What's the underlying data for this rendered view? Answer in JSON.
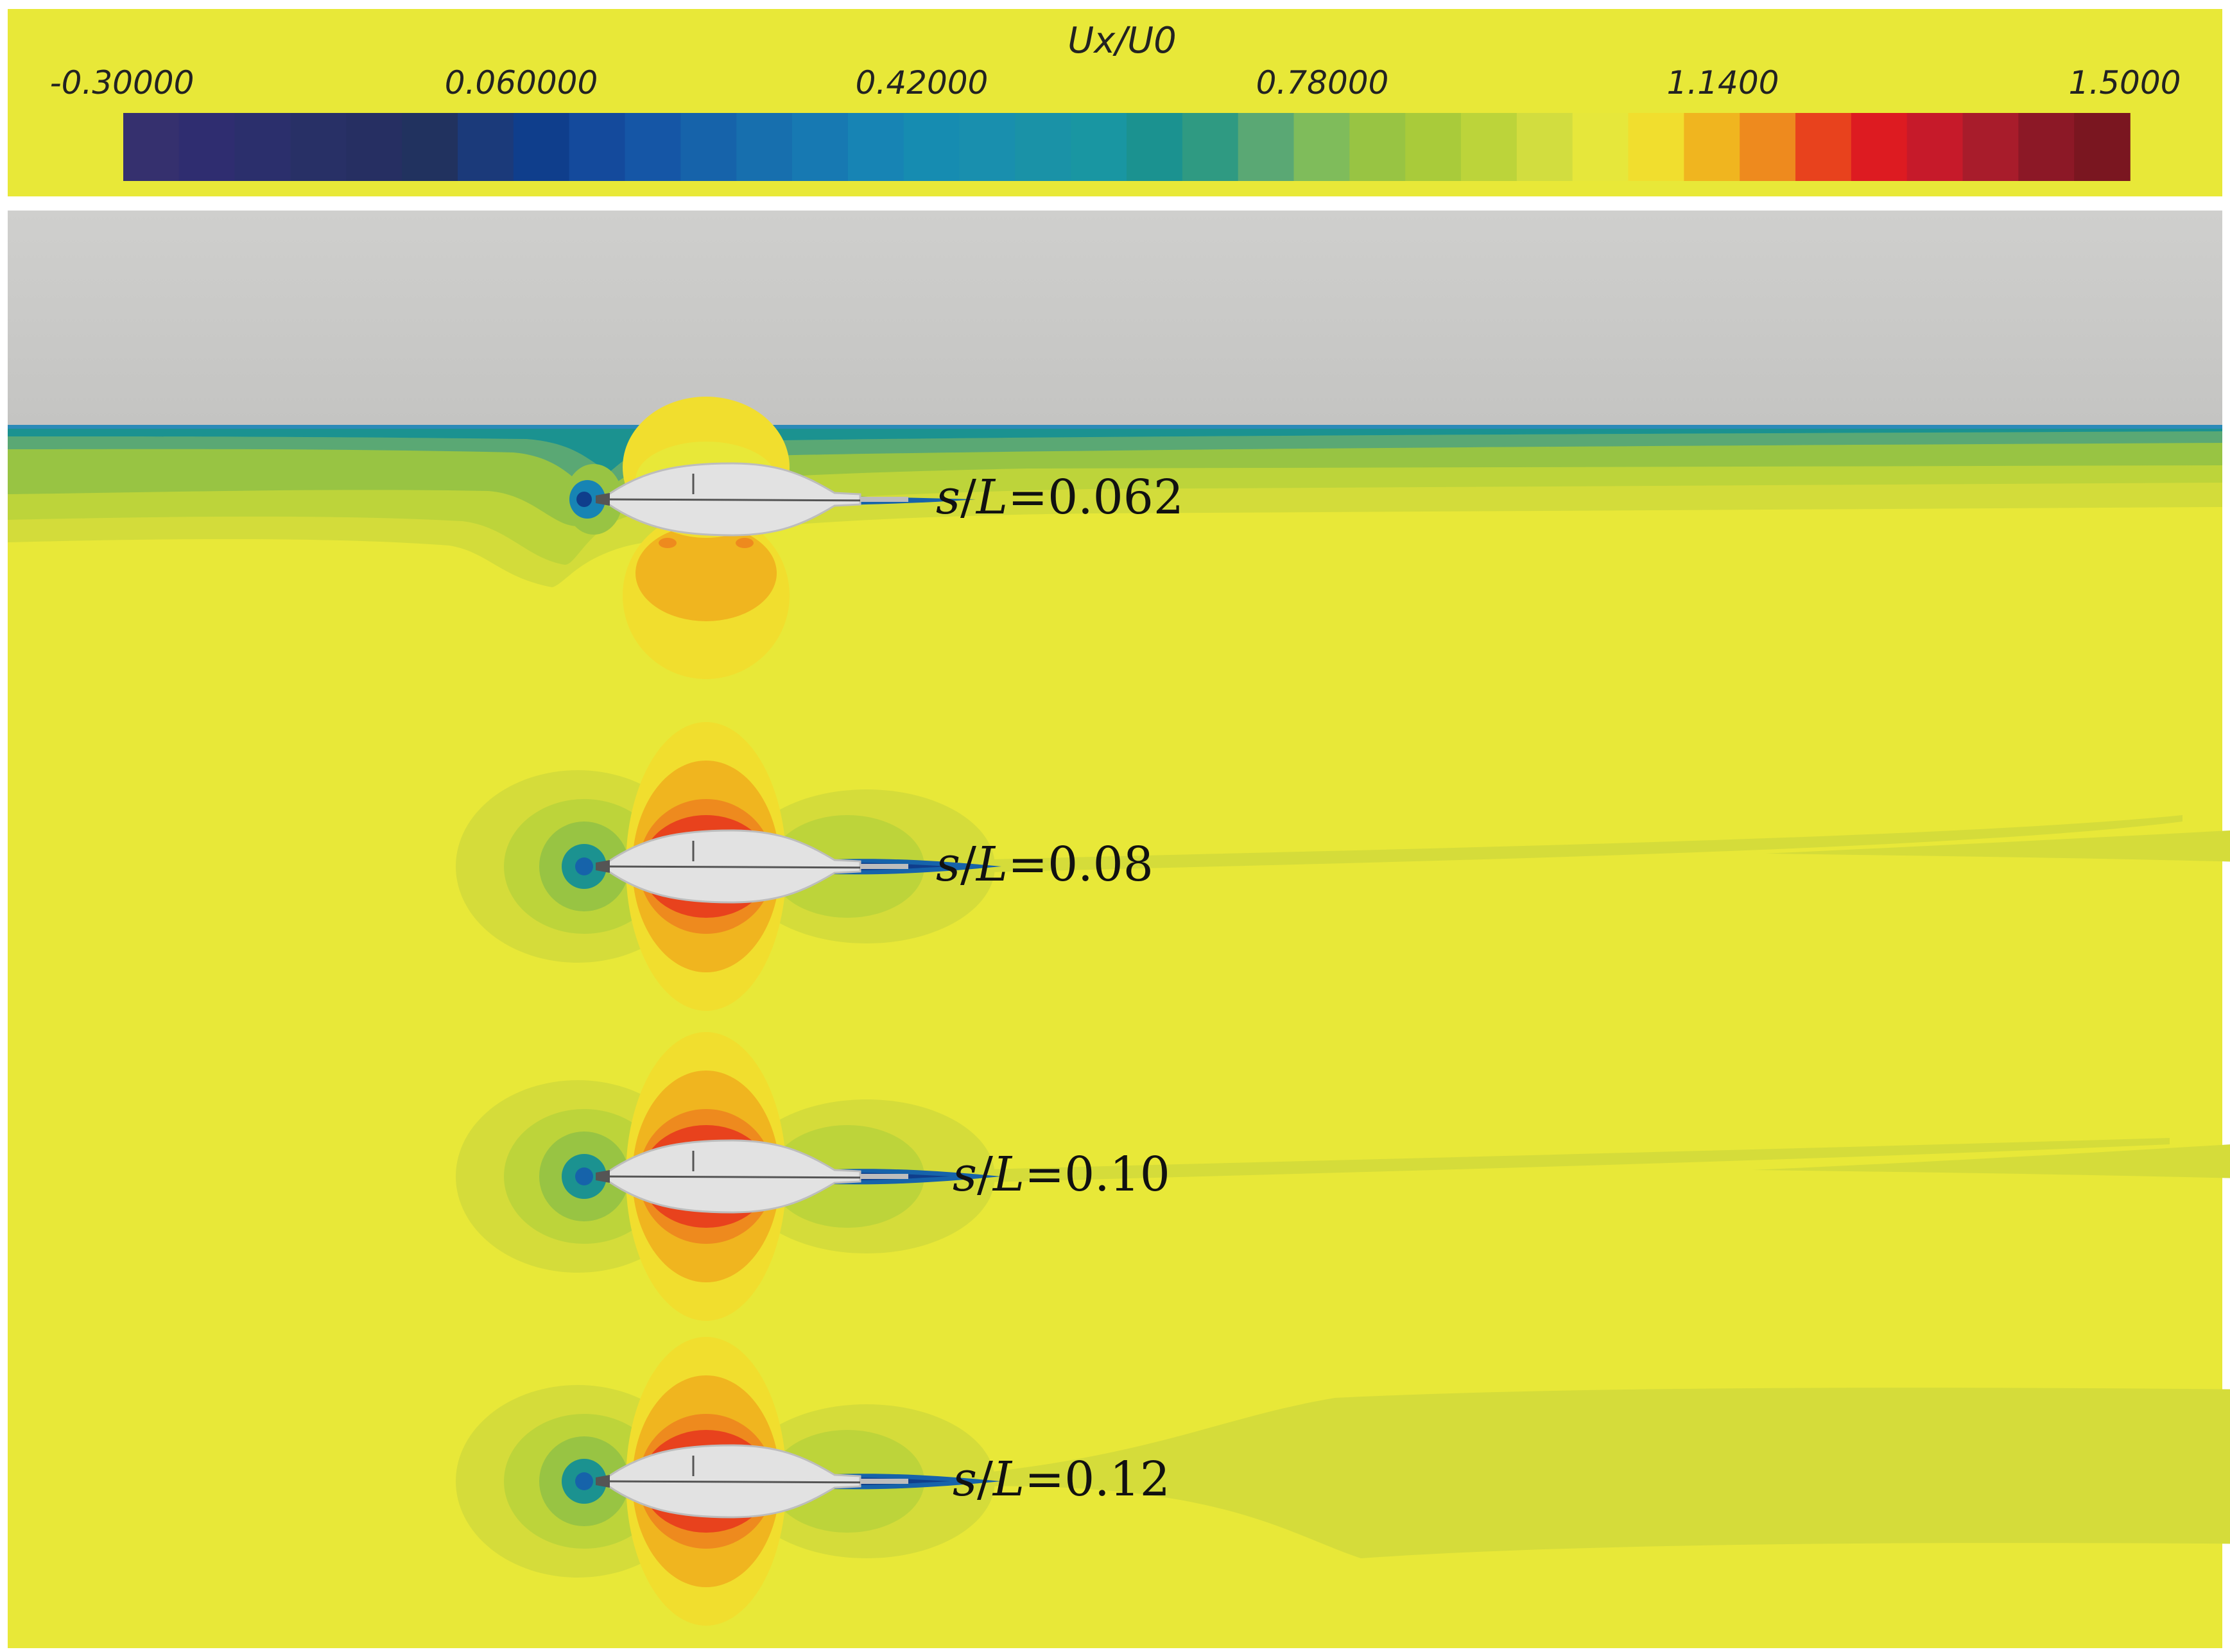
{
  "colorbar": {
    "title": "Ux/U0",
    "ticks": [
      "-0.30000",
      "0.060000",
      "0.42000",
      "0.78000",
      "1.1400",
      "1.5000"
    ],
    "colors": [
      "#35306e",
      "#2f2d70",
      "#2b2f6c",
      "#283066",
      "#262f62",
      "#21325f",
      "#1b3a7a",
      "#0f3e8c",
      "#144a9c",
      "#1556a6",
      "#1663aa",
      "#176fae",
      "#1779b2",
      "#1784b4",
      "#168cb1",
      "#198fae",
      "#1a92a7",
      "#1996a2",
      "#1b9290",
      "#2f9a82",
      "#5aa874",
      "#7fbc5b",
      "#98c443",
      "#a9cb3a",
      "#bcd43a",
      "#d2dd3f",
      "#e6e73b",
      "#f1de2e",
      "#f0b51f",
      "#ee8a1e",
      "#e8421d",
      "#dd1b21",
      "#c61a2a",
      "#a81c2b",
      "#8c1826",
      "#7a1620"
    ]
  },
  "cases": [
    {
      "s_symbol": "s",
      "L_symbol": "L",
      "value": "=0.062"
    },
    {
      "s_symbol": "s",
      "L_symbol": "L",
      "value": "=0.08"
    },
    {
      "s_symbol": "s",
      "L_symbol": "L",
      "value": "=0.10"
    },
    {
      "s_symbol": "s",
      "L_symbol": "L",
      "value": "=0.12"
    }
  ],
  "field_colors": {
    "background": "#e8e838",
    "freestream": "#e6e73b",
    "wake": "#d5dc3a",
    "free_surface_band": "#c9c9c7",
    "body": "#e2e2e2"
  }
}
